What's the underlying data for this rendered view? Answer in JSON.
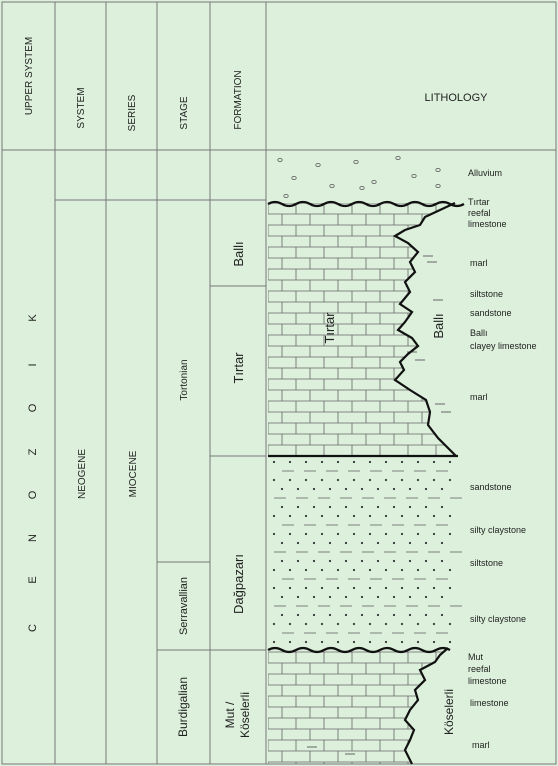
{
  "headers": {
    "upper_system": "UPPER SYSTEM",
    "system": "SYSTEM",
    "series": "SERIES",
    "stage": "STAGE",
    "formation": "FORMATION",
    "lithology": "LITHOLOGY"
  },
  "upper_system_letters": [
    "C",
    "E",
    "N",
    "O",
    "Z",
    "O",
    "I",
    "K"
  ],
  "system": "NEOGENE",
  "series": "MIOCENE",
  "stages": {
    "tortonian": "Tortonian",
    "serravallian": "Serravallian",
    "burdigalian": "Burdigalian"
  },
  "formations": {
    "balli": "Ballı",
    "tirtar": "Tırtar",
    "dagpazari": "Dağpazarı",
    "mut_line1": "Mut /",
    "mut_line2": "Köselerli"
  },
  "in_column": {
    "tirtar": "Tırtar",
    "balli": "Ballı",
    "koselerli": "Köselerli"
  },
  "lithology_labels": {
    "alluvium": "Alluvium",
    "tirtar_reefal_1": "Tırtar",
    "tirtar_reefal_2": "reefal",
    "tirtar_reefal_3": "limestone",
    "marl_upper": "marl",
    "siltstone_upper": "siltstone",
    "sandstone_upper": "sandstone",
    "balli_clayey_1": "Ballı",
    "balli_clayey_2": "clayey limestone",
    "marl_middle": "marl",
    "sandstone_lower": "sandstone",
    "silty_claystone_upper": "silty claystone",
    "siltstone_lower": "siltstone",
    "silty_claystone_lower": "silty claystone",
    "mut_reefal_1": "Mut",
    "mut_reefal_2": "reefal",
    "mut_reefal_3": "limestone",
    "limestone": "limestone",
    "marl_lower": "marl"
  },
  "colors": {
    "background": "#dcf0dc",
    "lines": "#777777",
    "boundary": "#111111"
  }
}
